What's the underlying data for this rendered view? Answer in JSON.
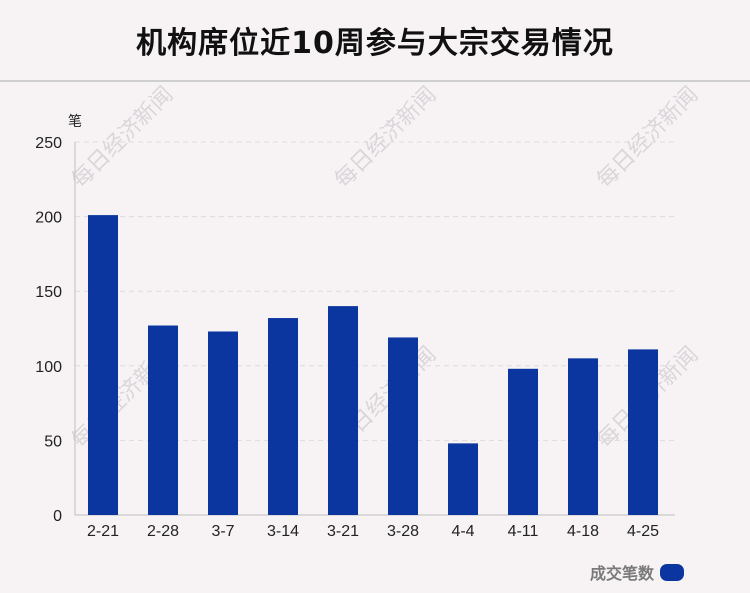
{
  "header": {
    "title": "机构席位近10周参与大宗交易情况"
  },
  "watermark": {
    "text": "每日经济新闻"
  },
  "legend": {
    "label": "成交笔数"
  },
  "colors": {
    "bar": "#0b36a0",
    "background": "#f7f3f5"
  },
  "chart_data": {
    "type": "bar",
    "title": "机构席位近10周参与大宗交易情况",
    "ylabel": "笔",
    "xlabel": "",
    "categories": [
      "2-21",
      "2-28",
      "3-7",
      "3-14",
      "3-21",
      "3-28",
      "4-4",
      "4-11",
      "4-18",
      "4-25"
    ],
    "series": [
      {
        "name": "成交笔数",
        "values": [
          201,
          127,
          123,
          132,
          140,
          119,
          48,
          98,
          105,
          111
        ]
      }
    ],
    "ylim": [
      0,
      250
    ],
    "yticks": [
      0,
      50,
      100,
      150,
      200,
      250
    ],
    "grid": true,
    "legend_position": "bottom-right"
  }
}
